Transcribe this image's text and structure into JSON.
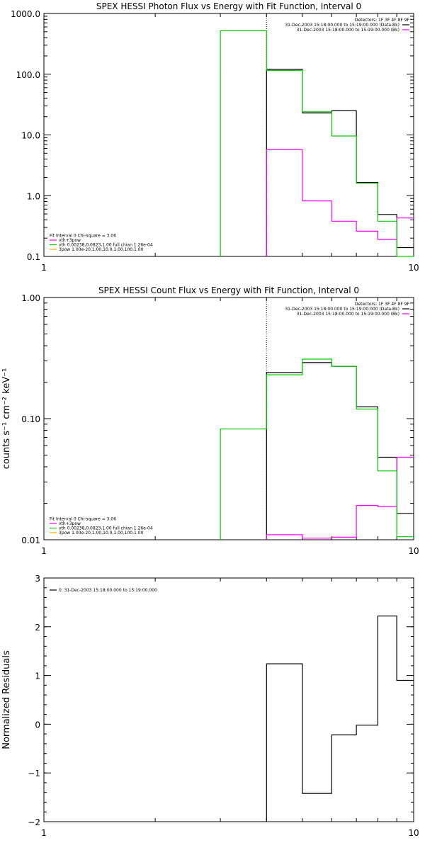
{
  "chart_data": [
    {
      "type": "line",
      "title": "SPEX HESSI Photon Flux vs Energy with Fit Function, Interval 0",
      "xlabel": "",
      "ylabel": "",
      "xscale": "log",
      "yscale": "log",
      "xlim": [
        1,
        10
      ],
      "ylim": [
        0.1,
        1000
      ],
      "x_ticks": [
        "1",
        "10"
      ],
      "y_ticks": [
        {
          "v": 1000,
          "label": "1000.0"
        },
        {
          "v": 100,
          "label": "100.0"
        },
        {
          "v": 10,
          "label": "10.0"
        },
        {
          "v": 1,
          "label": "1.0"
        },
        {
          "v": 0.1,
          "label": "0.1"
        }
      ],
      "vline": 4.0,
      "info_lines": [
        {
          "text": "Detectors: 1F 3F 4F 8F 9F",
          "swatch": ""
        },
        {
          "text": "31-Dec-2003 15:18:00.000 to 15:19:00.000 (Data-Bk)",
          "swatch": "#000000"
        },
        {
          "text": "31-Dec-2003 15:18:00.000 to 15:19:00.000 (Bk)",
          "swatch": "#ff00ff"
        }
      ],
      "legend": [
        {
          "text": "Fit Interval 0   Chi-square = 3.06",
          "swatch": ""
        },
        {
          "text": "vth+3pow",
          "swatch": "#ff00ff"
        },
        {
          "text": "vth 0.00238,0.0823,1.00  full chian 1.26e-04",
          "swatch": "#00cc00"
        },
        {
          "text": "3pow 1.00e-20,1.00,10.0,1.00,100,1.00",
          "swatch": "#ffaa00"
        }
      ],
      "series": [
        {
          "name": "31-Dec-2003 15:18:00.000 to 15:19:00.000 (Data-Bk)",
          "color": "#000000",
          "edges": [
            4,
            5,
            6,
            7,
            8,
            9,
            10
          ],
          "values": [
            120,
            23,
            25,
            1.65,
            0.49,
            0.14
          ]
        },
        {
          "name": "31-Dec-2003 15:18:00.000 to 15:19:00.000 (Bk)",
          "color": "#ff00ff",
          "edges": [
            4,
            5,
            6,
            7,
            8,
            9,
            10
          ],
          "values": [
            5.7,
            0.82,
            0.38,
            0.26,
            0.19,
            0.43
          ]
        },
        {
          "name": "vth 0.00238,0.0823,1.00  full chian 1.26e-04",
          "color": "#00cc00",
          "edges": [
            3,
            4,
            5,
            6,
            7,
            8,
            9,
            10
          ],
          "values": [
            520,
            115,
            24,
            9.6,
            1.6,
            0.38,
            0.1
          ]
        }
      ]
    },
    {
      "type": "line",
      "title": "SPEX HESSI Count Flux vs Energy with Fit Function, Interval 0",
      "xlabel": "",
      "ylabel": "counts s⁻¹ cm⁻² keV⁻¹",
      "xscale": "log",
      "yscale": "log",
      "xlim": [
        1,
        10
      ],
      "ylim": [
        0.01,
        1.0
      ],
      "x_ticks": [
        "1",
        "10"
      ],
      "y_ticks": [
        {
          "v": 1.0,
          "label": "1.00"
        },
        {
          "v": 0.1,
          "label": "0.10"
        },
        {
          "v": 0.01,
          "label": "0.01"
        }
      ],
      "vline": 4.0,
      "info_lines": [
        {
          "text": "Detectors: 1F 3F 4F 8F 9F",
          "swatch": ""
        },
        {
          "text": "31-Dec-2003 15:18:00.000 to 15:19:00.000 (Data-Bk)",
          "swatch": "#000000"
        },
        {
          "text": "31-Dec-2003 15:18:00.000 to 15:19:00.000 (Bk)",
          "swatch": "#ff00ff"
        }
      ],
      "legend": [
        {
          "text": "Fit Interval 0   Chi-square = 3.06",
          "swatch": ""
        },
        {
          "text": "vth+3pow",
          "swatch": "#ff00ff"
        },
        {
          "text": "vth 0.00238,0.0823,1.00  full chian 1.26e-04",
          "swatch": "#00cc00"
        },
        {
          "text": "3pow 1.00e-20,1.00,10.0,1.00,100,1.00",
          "swatch": "#ffaa00"
        }
      ],
      "series": [
        {
          "name": "31-Dec-2003 15:18:00.000 to 15:19:00.000 (Data-Bk)",
          "color": "#000000",
          "edges": [
            4,
            5,
            6,
            7,
            8,
            9,
            10
          ],
          "values": [
            0.24,
            0.29,
            0.27,
            0.125,
            0.048,
            0.0165
          ]
        },
        {
          "name": "31-Dec-2003 15:18:00.000 to 15:19:00.000 (Bk)",
          "color": "#ff00ff",
          "edges": [
            4,
            5,
            6,
            7,
            8,
            9,
            10
          ],
          "values": [
            0.011,
            0.0103,
            0.0105,
            0.0192,
            0.0188,
            0.048
          ]
        },
        {
          "name": "vth 0.00238,0.0823,1.00  full chian 1.26e-04",
          "color": "#00cc00",
          "edges": [
            3,
            4,
            5,
            6,
            7,
            8,
            9,
            10
          ],
          "values": [
            0.082,
            0.23,
            0.31,
            0.27,
            0.12,
            0.037,
            0.0106
          ]
        }
      ]
    },
    {
      "type": "line",
      "title": "",
      "xlabel": "",
      "ylabel": "Normalized Residuals",
      "xscale": "log",
      "yscale": "linear",
      "xlim": [
        1,
        10
      ],
      "ylim": [
        -2,
        3
      ],
      "x_ticks": [
        "1",
        "10"
      ],
      "y_ticks": [
        {
          "v": 3,
          "label": "3"
        },
        {
          "v": 2,
          "label": "2"
        },
        {
          "v": 1,
          "label": "1"
        },
        {
          "v": 0,
          "label": "0"
        },
        {
          "v": -1,
          "label": "−1"
        },
        {
          "v": -2,
          "label": "−2"
        }
      ],
      "vline": null,
      "info_lines": [],
      "legend": [
        {
          "text": "0. 31-Dec-2003 15:18:00.000 to 15:19:00.000",
          "swatch": "#000000"
        }
      ],
      "series": [
        {
          "name": "0. 31-Dec-2003 15:18:00.000 to 15:19:00.000",
          "color": "#000000",
          "edges": [
            4,
            5,
            6,
            7,
            8,
            9,
            10
          ],
          "values": [
            1.24,
            -1.42,
            -0.22,
            -0.02,
            2.22,
            0.9
          ]
        }
      ]
    }
  ]
}
